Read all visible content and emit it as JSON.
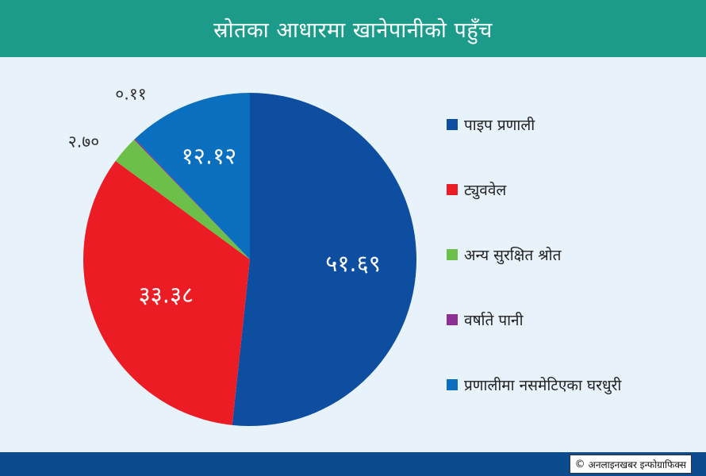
{
  "header": {
    "title": "स्रोतका आधारमा खानेपानीको पहुँच"
  },
  "chart_data": {
    "type": "pie",
    "slices": [
      {
        "name": "पाइप प्रणाली",
        "value": 51.69,
        "label": "५१.६९",
        "color": "#0d4ea1"
      },
      {
        "name": "ट्युववेल",
        "value": 33.38,
        "label": "३३.३८",
        "color": "#ec1c24"
      },
      {
        "name": "अन्य सुरक्षित श्रोत",
        "value": 2.7,
        "label": "२.७०",
        "color": "#6cc04a"
      },
      {
        "name": "वर्षाते पानी",
        "value": 0.11,
        "label": "०.११",
        "color": "#8e2f93"
      },
      {
        "name": "प्रणालीमा नसमेटिएका घरधुरी",
        "value": 12.12,
        "label": "१२.१२",
        "color": "#0a6fbf"
      }
    ],
    "start_angle_deg": 0,
    "direction": "clockwise",
    "legend_position": "right"
  },
  "footer": {
    "credit": "अनलाइनखबर इन्फोग्राफिक्स",
    "copyright_symbol": "©"
  }
}
